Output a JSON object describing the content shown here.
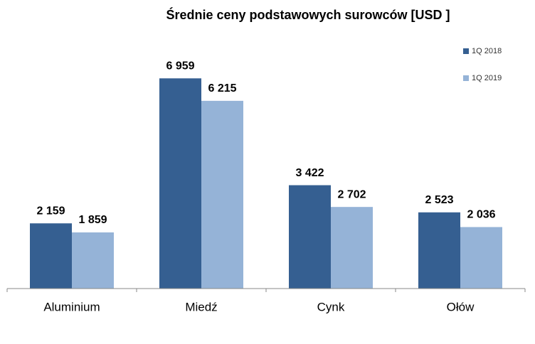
{
  "chart_data": {
    "type": "bar",
    "title": "Średnie ceny podstawowych surowców [USD ]",
    "categories": [
      "Aluminium",
      "Miedź",
      "Cynk",
      "Ołów"
    ],
    "series": [
      {
        "name": "1Q 2018",
        "color": "#355f91",
        "values": [
          2159,
          6959,
          3422,
          2523
        ],
        "value_labels": [
          "2 159",
          "6 959",
          "3 422",
          "2 523"
        ]
      },
      {
        "name": "1Q 2019",
        "color": "#95b3d7",
        "values": [
          1859,
          6215,
          2702,
          2036
        ],
        "value_labels": [
          "1 859",
          "6 215",
          "2 702",
          "2 036"
        ]
      }
    ],
    "ylim": [
      0,
      8000
    ],
    "legend": "top-right"
  }
}
